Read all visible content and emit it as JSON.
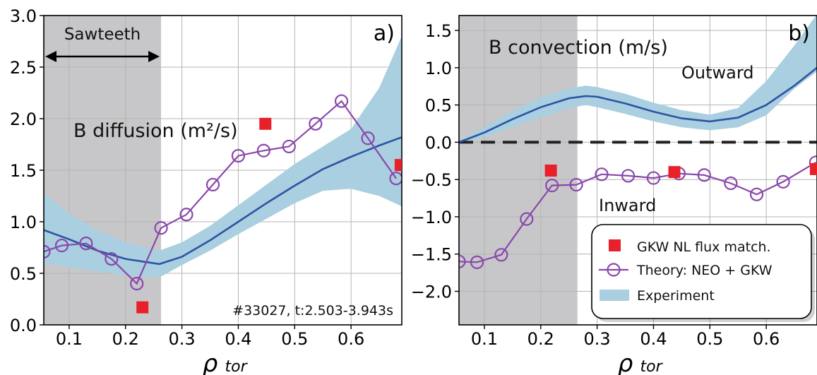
{
  "chart_data": [
    {
      "type": "line",
      "panel_label": "a)",
      "xlabel": "ρ",
      "xlabel_sub": "tor",
      "xlim": [
        0.055,
        0.69
      ],
      "ylim": [
        0.0,
        3.0
      ],
      "xticks": [
        "0.1",
        "0.2",
        "0.3",
        "0.4",
        "0.5",
        "0.6"
      ],
      "yticks": [
        "0.0",
        "0.5",
        "1.0",
        "1.5",
        "2.0",
        "2.5",
        "3.0"
      ],
      "grid": true,
      "shaded_region": {
        "x": [
          0.055,
          0.263
        ],
        "label": "Sawteeth"
      },
      "annotations": {
        "quantity": "B diffusion (m²/s)",
        "shot": "#33027, t:2.503-3.943s"
      },
      "series": [
        {
          "kind": "band",
          "x": [
            0.055,
            0.1,
            0.15,
            0.2,
            0.26,
            0.3,
            0.35,
            0.4,
            0.45,
            0.5,
            0.55,
            0.6,
            0.65,
            0.69
          ],
          "lower": [
            0.6,
            0.56,
            0.52,
            0.48,
            0.46,
            0.58,
            0.72,
            0.88,
            1.03,
            1.18,
            1.3,
            1.32,
            1.25,
            1.15
          ],
          "upper": [
            1.28,
            1.08,
            0.92,
            0.8,
            0.72,
            0.8,
            0.96,
            1.16,
            1.36,
            1.56,
            1.73,
            1.9,
            2.3,
            2.8
          ]
        },
        {
          "kind": "line",
          "x": [
            0.055,
            0.1,
            0.15,
            0.2,
            0.26,
            0.3,
            0.35,
            0.4,
            0.45,
            0.5,
            0.55,
            0.6,
            0.65,
            0.69
          ],
          "y": [
            0.92,
            0.83,
            0.72,
            0.64,
            0.59,
            0.66,
            0.82,
            1.0,
            1.18,
            1.35,
            1.51,
            1.63,
            1.74,
            1.82
          ]
        },
        {
          "kind": "line-marker",
          "x": [
            0.055,
            0.087,
            0.13,
            0.175,
            0.22,
            0.263,
            0.308,
            0.355,
            0.4,
            0.445,
            0.49,
            0.537,
            0.583,
            0.63,
            0.68
          ],
          "y": [
            0.71,
            0.77,
            0.79,
            0.64,
            0.4,
            0.94,
            1.07,
            1.36,
            1.64,
            1.69,
            1.73,
            1.95,
            2.17,
            1.81,
            1.42
          ]
        },
        {
          "kind": "scatter",
          "x": [
            0.23,
            0.448,
            0.688
          ],
          "y": [
            0.17,
            1.95,
            1.55
          ]
        }
      ]
    },
    {
      "type": "line",
      "panel_label": "b)",
      "xlabel": "ρ",
      "xlabel_sub": "tor",
      "xlim": [
        0.055,
        0.69
      ],
      "ylim": [
        -2.45,
        1.7
      ],
      "xticks": [
        "0.1",
        "0.2",
        "0.3",
        "0.4",
        "0.5",
        "0.6"
      ],
      "yticks": [
        "−2.0",
        "−1.5",
        "−1.0",
        "−0.5",
        "0.0",
        "0.5",
        "1.0",
        "1.5"
      ],
      "ytick_values": [
        -2.0,
        -1.5,
        -1.0,
        -0.5,
        0.0,
        0.5,
        1.0,
        1.5
      ],
      "grid": true,
      "shaded_region": {
        "x": [
          0.055,
          0.265
        ]
      },
      "zero_line": 0.0,
      "annotations": {
        "quantity": "B convection (m/s)",
        "outward": "Outward",
        "inward": "Inward"
      },
      "series": [
        {
          "kind": "band",
          "x": [
            0.055,
            0.1,
            0.15,
            0.2,
            0.25,
            0.28,
            0.3,
            0.35,
            0.4,
            0.45,
            0.5,
            0.55,
            0.6,
            0.65,
            0.69
          ],
          "lower": [
            -0.02,
            0.07,
            0.2,
            0.33,
            0.46,
            0.5,
            0.47,
            0.38,
            0.28,
            0.2,
            0.16,
            0.2,
            0.36,
            0.72,
            0.95
          ],
          "upper": [
            0.02,
            0.2,
            0.42,
            0.6,
            0.72,
            0.76,
            0.74,
            0.65,
            0.53,
            0.43,
            0.37,
            0.46,
            0.82,
            1.3,
            1.72
          ]
        },
        {
          "kind": "line",
          "x": [
            0.055,
            0.1,
            0.15,
            0.2,
            0.25,
            0.28,
            0.3,
            0.35,
            0.4,
            0.45,
            0.5,
            0.55,
            0.6,
            0.65,
            0.69
          ],
          "y": [
            0.0,
            0.13,
            0.31,
            0.47,
            0.59,
            0.62,
            0.61,
            0.52,
            0.41,
            0.32,
            0.28,
            0.33,
            0.5,
            0.76,
            1.0
          ]
        },
        {
          "kind": "line-marker",
          "x": [
            0.055,
            0.087,
            0.13,
            0.175,
            0.22,
            0.263,
            0.308,
            0.355,
            0.4,
            0.445,
            0.49,
            0.537,
            0.583,
            0.63,
            0.688
          ],
          "y": [
            -1.6,
            -1.61,
            -1.51,
            -1.03,
            -0.58,
            -0.57,
            -0.43,
            -0.45,
            -0.48,
            -0.42,
            -0.44,
            -0.55,
            -0.7,
            -0.53,
            -0.27
          ]
        },
        {
          "kind": "scatter",
          "x": [
            0.218,
            0.437,
            0.688
          ],
          "y": [
            -0.38,
            -0.4,
            -0.36
          ]
        }
      ],
      "legend": {
        "placement": "bottom-right",
        "entries": [
          "GKW NL flux match.",
          "Theory: NEO + GKW",
          "Experiment"
        ]
      }
    }
  ],
  "colors": {
    "band": "#a9cfe0",
    "line": "#2d53a3",
    "theory": "#8a48ab",
    "gkw": "#e8202a",
    "shade": "#c7c7c9",
    "grid": "#b4b4b4"
  }
}
